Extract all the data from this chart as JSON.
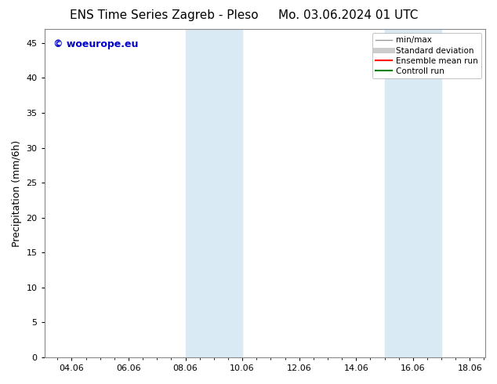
{
  "title_left": "ENS Time Series Zagreb - Pleso",
  "title_right": "Mo. 03.06.2024 01 UTC",
  "ylabel": "Precipitation (mm/6h)",
  "xlabel": "",
  "ylim": [
    0,
    47
  ],
  "yticks": [
    0,
    5,
    10,
    15,
    20,
    25,
    30,
    35,
    40,
    45
  ],
  "xtick_labels": [
    "04.06",
    "06.06",
    "08.06",
    "10.06",
    "12.06",
    "14.06",
    "16.06",
    "18.06"
  ],
  "xtick_days_of_june": [
    4,
    6,
    8,
    10,
    12,
    14,
    16,
    18
  ],
  "xlim_start_june": 3.041666667,
  "xlim_end_june": 18.541666667,
  "background_color": "#ffffff",
  "plot_bg_color": "#ffffff",
  "shaded_bands": [
    {
      "x_start_june": 8.0,
      "x_end_june": 10.0
    },
    {
      "x_start_june": 15.0,
      "x_end_june": 17.0
    }
  ],
  "shaded_color": "#daeaf5",
  "watermark_text": "© woeurope.eu",
  "watermark_color": "#0000cc",
  "legend_entries": [
    {
      "label": "min/max",
      "color": "#999999",
      "lw": 1.0,
      "linestyle": "-"
    },
    {
      "label": "Standard deviation",
      "color": "#cccccc",
      "lw": 5,
      "linestyle": "-"
    },
    {
      "label": "Ensemble mean run",
      "color": "#ff0000",
      "lw": 1.5,
      "linestyle": "-"
    },
    {
      "label": "Controll run",
      "color": "#008000",
      "lw": 1.5,
      "linestyle": "-"
    }
  ],
  "title_fontsize": 11,
  "axis_label_fontsize": 9,
  "tick_fontsize": 8,
  "legend_fontsize": 7.5
}
